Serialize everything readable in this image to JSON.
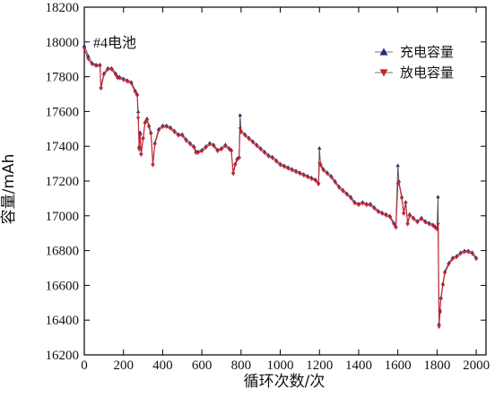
{
  "chart_data": {
    "type": "line",
    "title": "",
    "xlabel": "循环次数/次",
    "ylabel": "容量/mAh",
    "xlim": [
      0,
      2050
    ],
    "ylim": [
      16200,
      18200
    ],
    "x_ticks": [
      0,
      200,
      400,
      600,
      800,
      1000,
      1200,
      1400,
      1600,
      1800,
      2000
    ],
    "y_ticks": [
      16200,
      16400,
      16600,
      16800,
      17000,
      17200,
      17400,
      17600,
      17800,
      18000,
      18200
    ],
    "annotation": "#4电池",
    "legend_position": "top-right",
    "grid": false,
    "series": [
      {
        "name": "充电容量",
        "color": "#1f2d7a",
        "marker": "triangle-up",
        "points": [
          [
            0,
            17980
          ],
          [
            20,
            17920
          ],
          [
            40,
            17880
          ],
          [
            60,
            17870
          ],
          [
            80,
            17870
          ],
          [
            85,
            17740
          ],
          [
            100,
            17820
          ],
          [
            120,
            17850
          ],
          [
            140,
            17850
          ],
          [
            160,
            17820
          ],
          [
            170,
            17800
          ],
          [
            180,
            17800
          ],
          [
            200,
            17790
          ],
          [
            220,
            17780
          ],
          [
            240,
            17770
          ],
          [
            260,
            17720
          ],
          [
            270,
            17700
          ],
          [
            275,
            17600
          ],
          [
            280,
            17400
          ],
          [
            285,
            17480
          ],
          [
            290,
            17360
          ],
          [
            300,
            17450
          ],
          [
            310,
            17540
          ],
          [
            320,
            17560
          ],
          [
            330,
            17520
          ],
          [
            340,
            17480
          ],
          [
            350,
            17300
          ],
          [
            360,
            17420
          ],
          [
            380,
            17500
          ],
          [
            400,
            17520
          ],
          [
            420,
            17520
          ],
          [
            440,
            17510
          ],
          [
            460,
            17490
          ],
          [
            480,
            17470
          ],
          [
            500,
            17470
          ],
          [
            520,
            17440
          ],
          [
            540,
            17420
          ],
          [
            560,
            17400
          ],
          [
            570,
            17370
          ],
          [
            580,
            17370
          ],
          [
            600,
            17380
          ],
          [
            620,
            17400
          ],
          [
            640,
            17420
          ],
          [
            660,
            17410
          ],
          [
            680,
            17380
          ],
          [
            700,
            17390
          ],
          [
            720,
            17410
          ],
          [
            740,
            17390
          ],
          [
            750,
            17380
          ],
          [
            760,
            17250
          ],
          [
            770,
            17300
          ],
          [
            780,
            17330
          ],
          [
            790,
            17340
          ],
          [
            795,
            17580
          ],
          [
            800,
            17490
          ],
          [
            820,
            17470
          ],
          [
            840,
            17450
          ],
          [
            860,
            17430
          ],
          [
            880,
            17410
          ],
          [
            900,
            17390
          ],
          [
            920,
            17370
          ],
          [
            940,
            17350
          ],
          [
            960,
            17340
          ],
          [
            980,
            17320
          ],
          [
            1000,
            17300
          ],
          [
            1020,
            17290
          ],
          [
            1040,
            17280
          ],
          [
            1060,
            17270
          ],
          [
            1080,
            17260
          ],
          [
            1100,
            17250
          ],
          [
            1120,
            17240
          ],
          [
            1140,
            17230
          ],
          [
            1160,
            17220
          ],
          [
            1180,
            17210
          ],
          [
            1195,
            17190
          ],
          [
            1200,
            17390
          ],
          [
            1205,
            17300
          ],
          [
            1220,
            17270
          ],
          [
            1240,
            17250
          ],
          [
            1260,
            17230
          ],
          [
            1280,
            17200
          ],
          [
            1300,
            17170
          ],
          [
            1320,
            17150
          ],
          [
            1340,
            17130
          ],
          [
            1360,
            17110
          ],
          [
            1380,
            17080
          ],
          [
            1400,
            17070
          ],
          [
            1420,
            17080
          ],
          [
            1440,
            17070
          ],
          [
            1460,
            17070
          ],
          [
            1480,
            17050
          ],
          [
            1500,
            17030
          ],
          [
            1520,
            17020
          ],
          [
            1540,
            17010
          ],
          [
            1560,
            17000
          ],
          [
            1580,
            16960
          ],
          [
            1590,
            16940
          ],
          [
            1600,
            17290
          ],
          [
            1605,
            17200
          ],
          [
            1620,
            17110
          ],
          [
            1630,
            17020
          ],
          [
            1640,
            17080
          ],
          [
            1650,
            16960
          ],
          [
            1660,
            17010
          ],
          [
            1680,
            16990
          ],
          [
            1700,
            16970
          ],
          [
            1720,
            16990
          ],
          [
            1740,
            16970
          ],
          [
            1760,
            16960
          ],
          [
            1780,
            16950
          ],
          [
            1790,
            16940
          ],
          [
            1800,
            16930
          ],
          [
            1805,
            17110
          ],
          [
            1810,
            16380
          ],
          [
            1815,
            16460
          ],
          [
            1820,
            16530
          ],
          [
            1830,
            16610
          ],
          [
            1840,
            16680
          ],
          [
            1860,
            16730
          ],
          [
            1880,
            16760
          ],
          [
            1900,
            16770
          ],
          [
            1920,
            16790
          ],
          [
            1940,
            16800
          ],
          [
            1960,
            16800
          ],
          [
            1980,
            16790
          ],
          [
            2000,
            16760
          ]
        ]
      },
      {
        "name": "放电容量",
        "color": "#cc1f2a",
        "marker": "triangle-down",
        "points": [
          [
            0,
            17960
          ],
          [
            20,
            17900
          ],
          [
            40,
            17870
          ],
          [
            60,
            17860
          ],
          [
            80,
            17860
          ],
          [
            85,
            17730
          ],
          [
            100,
            17810
          ],
          [
            120,
            17840
          ],
          [
            140,
            17840
          ],
          [
            160,
            17810
          ],
          [
            170,
            17790
          ],
          [
            180,
            17790
          ],
          [
            200,
            17780
          ],
          [
            220,
            17770
          ],
          [
            240,
            17760
          ],
          [
            260,
            17710
          ],
          [
            270,
            17690
          ],
          [
            275,
            17560
          ],
          [
            280,
            17380
          ],
          [
            285,
            17460
          ],
          [
            290,
            17350
          ],
          [
            300,
            17440
          ],
          [
            310,
            17530
          ],
          [
            320,
            17550
          ],
          [
            330,
            17510
          ],
          [
            340,
            17470
          ],
          [
            350,
            17290
          ],
          [
            360,
            17410
          ],
          [
            380,
            17490
          ],
          [
            400,
            17510
          ],
          [
            420,
            17510
          ],
          [
            440,
            17500
          ],
          [
            460,
            17480
          ],
          [
            480,
            17460
          ],
          [
            500,
            17460
          ],
          [
            520,
            17430
          ],
          [
            540,
            17410
          ],
          [
            560,
            17390
          ],
          [
            570,
            17360
          ],
          [
            580,
            17360
          ],
          [
            600,
            17370
          ],
          [
            620,
            17390
          ],
          [
            640,
            17410
          ],
          [
            660,
            17400
          ],
          [
            680,
            17370
          ],
          [
            700,
            17380
          ],
          [
            720,
            17400
          ],
          [
            740,
            17380
          ],
          [
            750,
            17370
          ],
          [
            760,
            17240
          ],
          [
            770,
            17290
          ],
          [
            780,
            17320
          ],
          [
            790,
            17330
          ],
          [
            795,
            17500
          ],
          [
            800,
            17480
          ],
          [
            820,
            17460
          ],
          [
            840,
            17440
          ],
          [
            860,
            17420
          ],
          [
            880,
            17400
          ],
          [
            900,
            17380
          ],
          [
            920,
            17360
          ],
          [
            940,
            17340
          ],
          [
            960,
            17330
          ],
          [
            980,
            17310
          ],
          [
            1000,
            17290
          ],
          [
            1020,
            17280
          ],
          [
            1040,
            17270
          ],
          [
            1060,
            17260
          ],
          [
            1080,
            17250
          ],
          [
            1100,
            17240
          ],
          [
            1120,
            17230
          ],
          [
            1140,
            17220
          ],
          [
            1160,
            17210
          ],
          [
            1180,
            17200
          ],
          [
            1195,
            17180
          ],
          [
            1200,
            17300
          ],
          [
            1205,
            17290
          ],
          [
            1220,
            17260
          ],
          [
            1240,
            17240
          ],
          [
            1260,
            17220
          ],
          [
            1280,
            17190
          ],
          [
            1300,
            17160
          ],
          [
            1320,
            17140
          ],
          [
            1340,
            17120
          ],
          [
            1360,
            17100
          ],
          [
            1380,
            17070
          ],
          [
            1400,
            17060
          ],
          [
            1420,
            17070
          ],
          [
            1440,
            17060
          ],
          [
            1460,
            17060
          ],
          [
            1480,
            17040
          ],
          [
            1500,
            17020
          ],
          [
            1520,
            17010
          ],
          [
            1540,
            17000
          ],
          [
            1560,
            16990
          ],
          [
            1580,
            16950
          ],
          [
            1590,
            16930
          ],
          [
            1600,
            17180
          ],
          [
            1605,
            17190
          ],
          [
            1620,
            17100
          ],
          [
            1630,
            17010
          ],
          [
            1640,
            17070
          ],
          [
            1650,
            16950
          ],
          [
            1660,
            17000
          ],
          [
            1680,
            16980
          ],
          [
            1700,
            16960
          ],
          [
            1720,
            16980
          ],
          [
            1740,
            16960
          ],
          [
            1760,
            16950
          ],
          [
            1780,
            16940
          ],
          [
            1790,
            16930
          ],
          [
            1800,
            16920
          ],
          [
            1805,
            16950
          ],
          [
            1810,
            16360
          ],
          [
            1815,
            16440
          ],
          [
            1820,
            16520
          ],
          [
            1830,
            16600
          ],
          [
            1840,
            16670
          ],
          [
            1860,
            16720
          ],
          [
            1880,
            16750
          ],
          [
            1900,
            16760
          ],
          [
            1920,
            16780
          ],
          [
            1940,
            16790
          ],
          [
            1960,
            16790
          ],
          [
            1980,
            16780
          ],
          [
            2000,
            16750
          ]
        ]
      }
    ]
  }
}
